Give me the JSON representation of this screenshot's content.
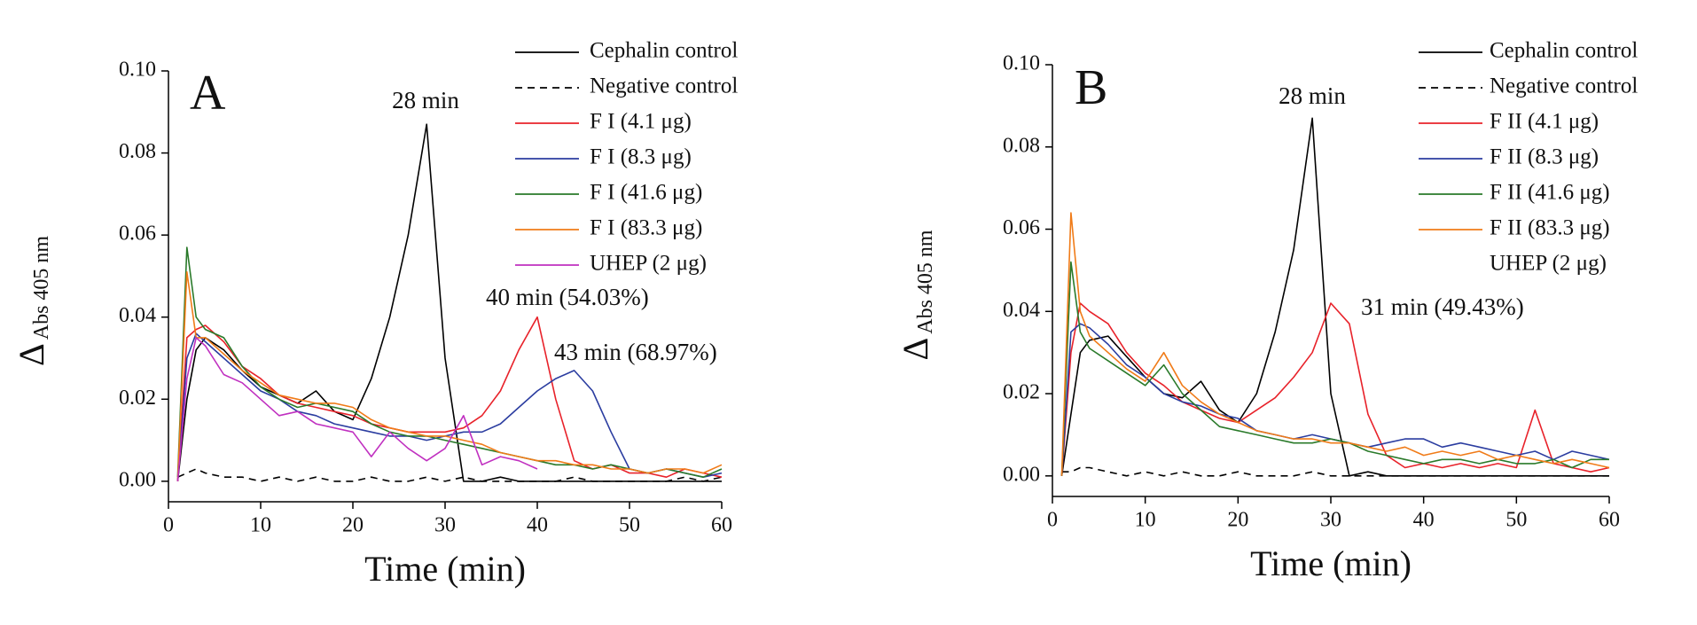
{
  "chart_data": [
    {
      "type": "line",
      "panel_label": "A",
      "xlabel": "Time (min)",
      "ylabel": "Δ",
      "ylabel_sub": "Abs 405 nm",
      "xlim": [
        0,
        60
      ],
      "ylim": [
        -0.005,
        0.1
      ],
      "xticks": [
        0,
        10,
        20,
        30,
        40,
        50,
        60
      ],
      "yticks": [
        {
          "value": 0,
          "label": "0.00"
        },
        {
          "value": 0.02,
          "label": "0.02"
        },
        {
          "value": 0.04,
          "label": "0.04"
        },
        {
          "value": 0.06,
          "label": "0.06"
        },
        {
          "value": 0.08,
          "label": "0.08"
        },
        {
          "value": 0.1,
          "label": "0.10"
        }
      ],
      "annotations": [
        "28 min",
        "40 min (54.03%)",
        "43 min (68.97%)"
      ],
      "x": [
        1,
        2,
        3,
        4,
        6,
        8,
        10,
        12,
        14,
        16,
        18,
        20,
        22,
        24,
        26,
        28,
        30,
        32,
        34,
        36,
        38,
        40,
        42,
        44,
        46,
        48,
        50,
        52,
        54,
        56,
        58,
        60
      ],
      "series": [
        {
          "name": "Cephalin control",
          "color": "#000000",
          "values": [
            0,
            0.02,
            0.032,
            0.035,
            0.032,
            0.027,
            0.023,
            0.021,
            0.019,
            0.022,
            0.017,
            0.015,
            0.025,
            0.04,
            0.06,
            0.087,
            0.03,
            0,
            0,
            0.001,
            0,
            0,
            0,
            0,
            0,
            0,
            0,
            0,
            0,
            0,
            0,
            0
          ]
        },
        {
          "name": "Negative control",
          "color": "#000000",
          "dash": true,
          "values": [
            0.001,
            0.002,
            0.003,
            0.002,
            0.001,
            0.001,
            0,
            0.001,
            0,
            0.001,
            0,
            0,
            0.001,
            0,
            0,
            0.001,
            0,
            0.001,
            0,
            0,
            0,
            0,
            0,
            0.001,
            0,
            0,
            0,
            0,
            0,
            0.001,
            0,
            0.001
          ]
        },
        {
          "name": "F I (4.1 μg)",
          "color": "#e8222a",
          "values": [
            0,
            0.035,
            0.037,
            0.038,
            0.034,
            0.028,
            0.025,
            0.021,
            0.019,
            0.018,
            0.017,
            0.016,
            0.014,
            0.013,
            0.012,
            0.012,
            0.012,
            0.013,
            0.016,
            0.022,
            0.032,
            0.04,
            0.02,
            0.005,
            0.003,
            0.004,
            0.002,
            0.002,
            0.001,
            0.003,
            0.002,
            0.001
          ]
        },
        {
          "name": "F I (8.3 μg)",
          "color": "#2b3da0",
          "values": [
            0,
            0.03,
            0.036,
            0.034,
            0.03,
            0.026,
            0.022,
            0.02,
            0.017,
            0.016,
            0.014,
            0.013,
            0.012,
            0.011,
            0.011,
            0.01,
            0.011,
            0.012,
            0.012,
            0.014,
            0.018,
            0.022,
            0.025,
            0.027,
            0.022,
            0.012,
            0.003,
            0.002,
            0.003,
            0.002,
            0.001,
            0.002
          ]
        },
        {
          "name": "F I (41.6 μg)",
          "color": "#2a7a2a",
          "values": [
            0.001,
            0.057,
            0.04,
            0.037,
            0.035,
            0.028,
            0.023,
            0.02,
            0.018,
            0.019,
            0.018,
            0.017,
            0.014,
            0.012,
            0.011,
            0.011,
            0.01,
            0.009,
            0.008,
            0.007,
            0.006,
            0.005,
            0.004,
            0.004,
            0.003,
            0.004,
            0.003,
            0.002,
            0.003,
            0.002,
            0.001,
            0.003
          ]
        },
        {
          "name": "F I (83.3 μg)",
          "color": "#f07b18",
          "values": [
            0,
            0.051,
            0.035,
            0.035,
            0.031,
            0.027,
            0.024,
            0.021,
            0.02,
            0.019,
            0.019,
            0.018,
            0.015,
            0.013,
            0.012,
            0.011,
            0.011,
            0.01,
            0.009,
            0.007,
            0.006,
            0.005,
            0.005,
            0.004,
            0.004,
            0.003,
            0.003,
            0.002,
            0.003,
            0.003,
            0.002,
            0.004
          ]
        },
        {
          "name": "UHEP (2 μg)",
          "color": "#c030c0",
          "values": [
            0,
            0.025,
            0.035,
            0.033,
            0.026,
            0.024,
            0.02,
            0.016,
            0.017,
            0.014,
            0.013,
            0.012,
            0.006,
            0.012,
            0.008,
            0.005,
            0.008,
            0.016,
            0.004,
            0.006,
            0.005,
            0.003,
            null,
            null,
            null,
            null,
            null,
            null,
            null,
            null,
            null,
            null
          ]
        }
      ]
    },
    {
      "type": "line",
      "panel_label": "B",
      "xlabel": "Time (min)",
      "ylabel": "Δ",
      "ylabel_sub": "Abs 405 nm",
      "xlim": [
        0,
        60
      ],
      "ylim": [
        -0.005,
        0.1
      ],
      "xticks": [
        0,
        10,
        20,
        30,
        40,
        50,
        60
      ],
      "yticks": [
        {
          "value": 0,
          "label": "0.00"
        },
        {
          "value": 0.02,
          "label": "0.02"
        },
        {
          "value": 0.04,
          "label": "0.04"
        },
        {
          "value": 0.06,
          "label": "0.06"
        },
        {
          "value": 0.08,
          "label": "0.08"
        },
        {
          "value": 0.1,
          "label": "0.10"
        }
      ],
      "annotations": [
        "28 min",
        "31 min (49.43%)"
      ],
      "x": [
        1,
        2,
        3,
        4,
        6,
        8,
        10,
        12,
        14,
        16,
        18,
        20,
        22,
        24,
        26,
        28,
        30,
        32,
        34,
        36,
        38,
        40,
        42,
        44,
        46,
        48,
        50,
        52,
        54,
        56,
        58,
        60
      ],
      "series": [
        {
          "name": "Cephalin control",
          "color": "#000000",
          "values": [
            0,
            0.015,
            0.03,
            0.033,
            0.034,
            0.029,
            0.024,
            0.02,
            0.019,
            0.023,
            0.016,
            0.013,
            0.02,
            0.035,
            0.055,
            0.087,
            0.02,
            0,
            0.001,
            0,
            0,
            0,
            0,
            0,
            0,
            0,
            0,
            0,
            0,
            0,
            0,
            0
          ]
        },
        {
          "name": "Negative control",
          "color": "#000000",
          "dash": true,
          "values": [
            0.001,
            0.001,
            0.002,
            0.002,
            0.001,
            0,
            0.001,
            0,
            0.001,
            0,
            0,
            0.001,
            0,
            0,
            0,
            0.001,
            0,
            0,
            0,
            0,
            0,
            0,
            0,
            0,
            0,
            0,
            0,
            0,
            0,
            0,
            0,
            0
          ]
        },
        {
          "name": "F II (4.1 μg)",
          "color": "#e8222a",
          "values": [
            0,
            0.03,
            0.042,
            0.04,
            0.037,
            0.03,
            0.025,
            0.022,
            0.018,
            0.016,
            0.014,
            0.013,
            0.016,
            0.019,
            0.024,
            0.03,
            0.042,
            0.037,
            0.015,
            0.005,
            0.002,
            0.003,
            0.002,
            0.003,
            0.002,
            0.003,
            0.002,
            0.016,
            0.003,
            0.002,
            0.001,
            0.002
          ]
        },
        {
          "name": "F II (8.3 μg)",
          "color": "#2b3da0",
          "values": [
            0,
            0.035,
            0.037,
            0.036,
            0.032,
            0.027,
            0.024,
            0.02,
            0.018,
            0.017,
            0.015,
            0.014,
            0.011,
            0.01,
            0.009,
            0.01,
            0.009,
            0.008,
            0.007,
            0.008,
            0.009,
            0.009,
            0.007,
            0.008,
            0.007,
            0.006,
            0.005,
            0.006,
            0.004,
            0.006,
            0.005,
            0.004
          ]
        },
        {
          "name": "F II (41.6 μg)",
          "color": "#2a7a2a",
          "values": [
            0,
            0.052,
            0.035,
            0.031,
            0.028,
            0.025,
            0.022,
            0.027,
            0.02,
            0.016,
            0.012,
            0.011,
            0.01,
            0.009,
            0.008,
            0.008,
            0.009,
            0.008,
            0.006,
            0.005,
            0.004,
            0.003,
            0.004,
            0.004,
            0.003,
            0.004,
            0.003,
            0.003,
            0.004,
            0.002,
            0.004,
            0.004
          ]
        },
        {
          "name": "F II (83.3 μg)",
          "color": "#f07b18",
          "values": [
            0,
            0.064,
            0.04,
            0.034,
            0.03,
            0.026,
            0.023,
            0.03,
            0.022,
            0.018,
            0.015,
            0.013,
            0.011,
            0.01,
            0.009,
            0.009,
            0.008,
            0.008,
            0.007,
            0.006,
            0.007,
            0.005,
            0.006,
            0.005,
            0.006,
            0.004,
            0.005,
            0.004,
            0.003,
            0.004,
            0.003,
            0.002
          ]
        },
        {
          "name": "UHEP (2 μg)",
          "color": null,
          "values": [
            null,
            null,
            null,
            null,
            null,
            null,
            null,
            null,
            null,
            null,
            null,
            null,
            null,
            null,
            null,
            null,
            null,
            null,
            null,
            null,
            null,
            null,
            null,
            null,
            null,
            null,
            null,
            null,
            null,
            null,
            null,
            null
          ]
        }
      ]
    }
  ]
}
